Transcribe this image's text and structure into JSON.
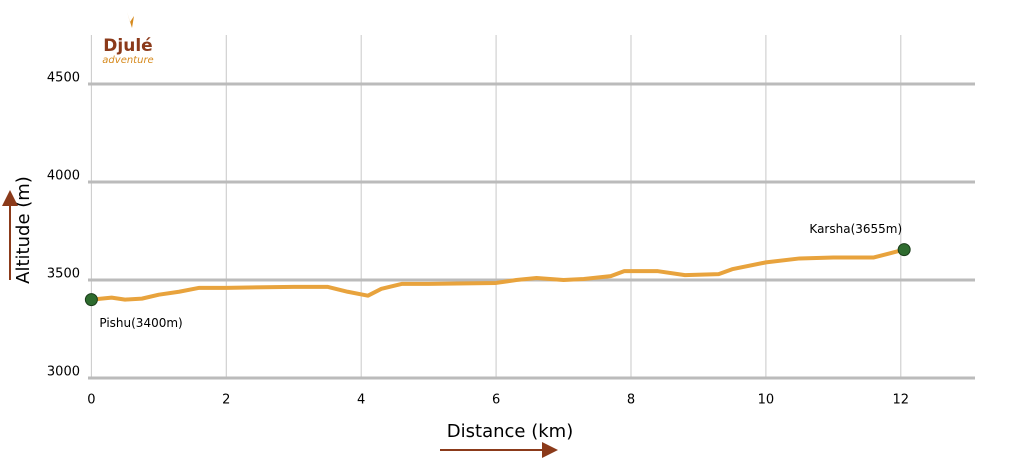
{
  "chart_data": {
    "type": "line",
    "logo": {
      "name": "Djulé",
      "tagline": "adventure"
    },
    "xlabel": "Distance (km)",
    "ylabel": "Altitude (m)",
    "x": [
      0,
      0.3,
      0.5,
      0.75,
      1.0,
      1.3,
      1.6,
      2.0,
      3.0,
      3.5,
      3.8,
      4.1,
      4.3,
      4.6,
      5.0,
      6.0,
      6.3,
      6.6,
      7.0,
      7.3,
      7.7,
      7.9,
      8.4,
      8.8,
      9.3,
      9.5,
      10.0,
      10.5,
      11.0,
      11.6,
      12.05
    ],
    "series": [
      {
        "color": "#e8a33d",
        "values": [
          3400,
          3410,
          3400,
          3405,
          3425,
          3440,
          3460,
          3460,
          3465,
          3465,
          3440,
          3420,
          3455,
          3480,
          3480,
          3485,
          3500,
          3510,
          3500,
          3505,
          3520,
          3545,
          3545,
          3525,
          3530,
          3555,
          3590,
          3610,
          3615,
          3615,
          3655
        ]
      }
    ],
    "annotations": [
      {
        "x": 0,
        "y": 3400,
        "text": "Pishu(3400m)"
      },
      {
        "x": 12.05,
        "y": 3655,
        "text": "Karsha(3655m)"
      }
    ],
    "marker_color": "#2e6b2e",
    "xlim": [
      -0.05,
      13.1
    ],
    "ylim": [
      3000,
      4750
    ],
    "xticks": [
      0,
      2,
      4,
      6,
      8,
      10,
      12
    ],
    "yticks": [
      3000,
      3500,
      4000,
      4500
    ],
    "grid": true
  }
}
